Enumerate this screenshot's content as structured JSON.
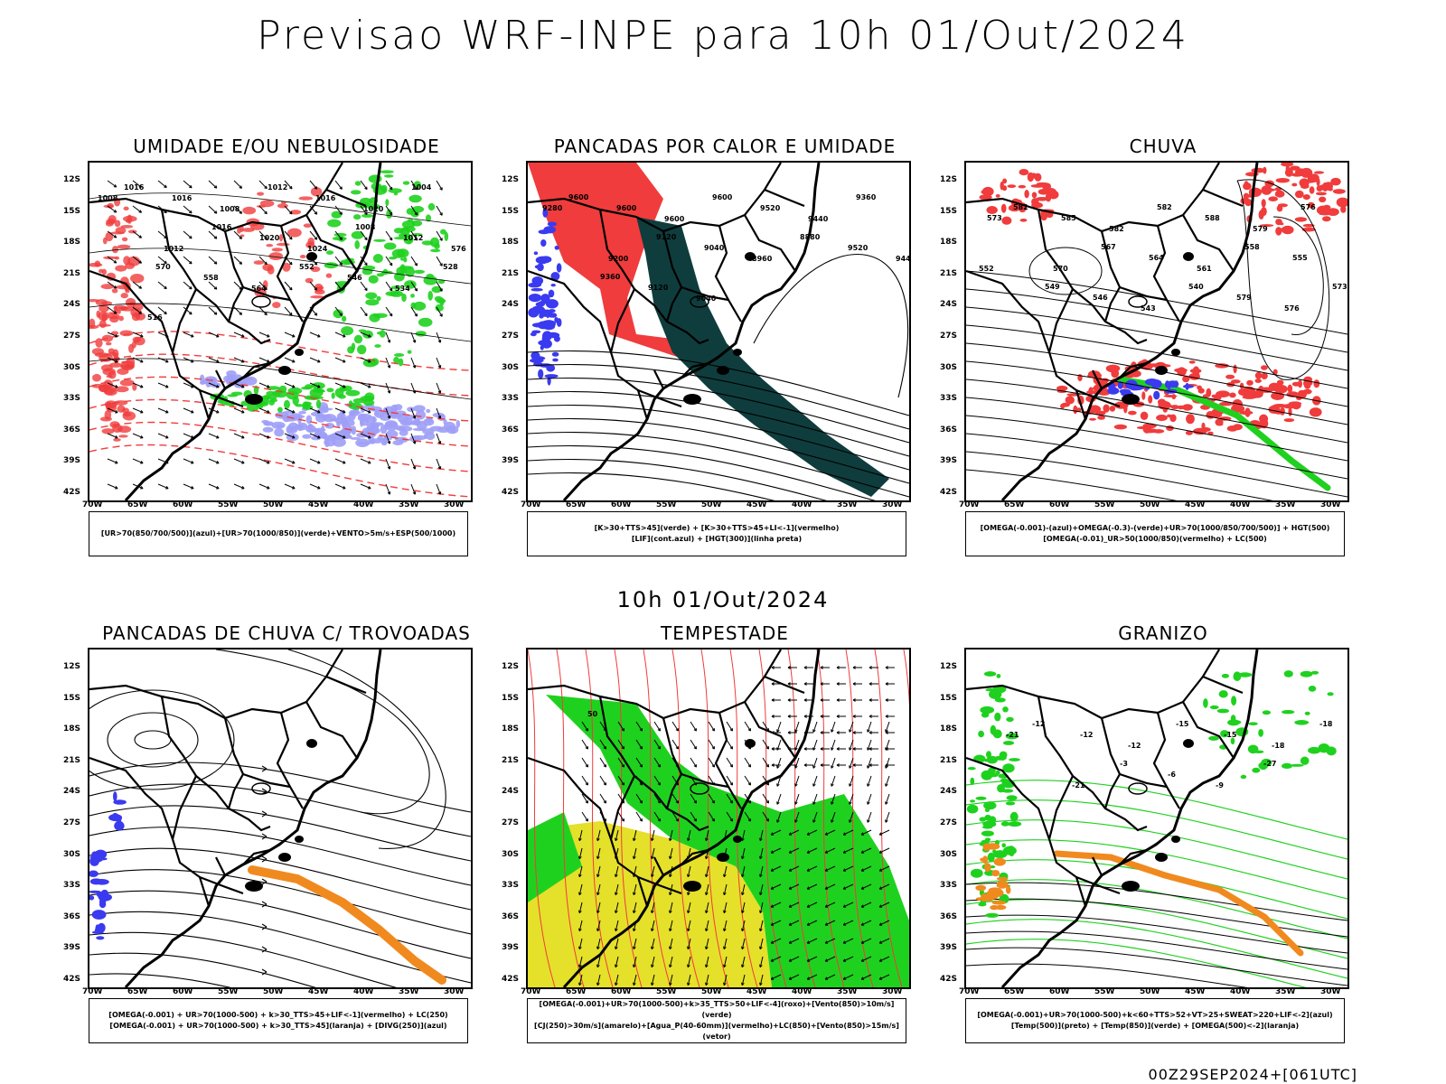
{
  "title": "Previsao WRF-INPE  para 10h 01/Out/2024",
  "subtitle": "10h 01/Out/2024",
  "footer": "00Z29SEP2024+[061UTC]",
  "axes": {
    "lat_ticks": [
      "12S",
      "15S",
      "18S",
      "21S",
      "24S",
      "27S",
      "30S",
      "33S",
      "36S",
      "39S",
      "42S"
    ],
    "lon_ticks": [
      "70W",
      "65W",
      "60W",
      "55W",
      "50W",
      "45W",
      "40W",
      "35W",
      "30W"
    ]
  },
  "colors": {
    "red": "#f03c3c",
    "green": "#1fd11f",
    "blue": "#3a3af0",
    "lightblue": "#9f9ff7",
    "darkgreen": "#0f3d3d",
    "yellow": "#e5e02a",
    "orange": "#f08a1e",
    "black": "#000000"
  },
  "panels": [
    {
      "id": "umidade",
      "title": "UMIDADE E/OU NEBULOSIDADE",
      "legend": [
        "[UR>70(850/700/500)](azul)+[UR>70(1000/850)](verde)+VENTO>5m/s+ESP(500/1000)"
      ],
      "contour_labels": [
        "1016",
        "1016",
        "1008",
        "1012",
        "1016",
        "1020",
        "1004",
        "1008",
        "1012",
        "1016",
        "1020",
        "1024",
        "1008",
        "1012",
        "576",
        "570",
        "558",
        "564",
        "552",
        "546",
        "534",
        "528",
        "516"
      ]
    },
    {
      "id": "pancadas-calor",
      "title": "PANCADAS POR CALOR E UMIDADE",
      "legend": [
        "[K>30+TTS>45](verde) + [K>30+TTS>45+LI<-1](vermelho)",
        "[LIF](cont.azul) + [HGT(300)](linha preta)"
      ],
      "contour_labels": [
        "9600",
        "9600",
        "9600",
        "9600",
        "9520",
        "9440",
        "9360",
        "9280",
        "9200",
        "9120",
        "9040",
        "8960",
        "8880",
        "9520",
        "9440",
        "9360",
        "9120",
        "9040"
      ]
    },
    {
      "id": "chuva",
      "title": "CHUVA",
      "legend": [
        "[OMEGA(-0.001)-(azul)+OMEGA(-0.3)-(verde)+UR>70(1000/850/700/500)] + HGT(500)",
        "[OMEGA(-0.01)_UR>50(1000/850)(vermelho) + LC(500)"
      ],
      "contour_labels": [
        "582",
        "585",
        "582",
        "582",
        "588",
        "579",
        "576",
        "573",
        "570",
        "567",
        "564",
        "561",
        "558",
        "555",
        "552",
        "549",
        "546",
        "543",
        "540",
        "579",
        "576",
        "573"
      ]
    },
    {
      "id": "trovoadas",
      "title": "PANCADAS DE CHUVA C/ TROVOADAS",
      "legend": [
        "[OMEGA(-0.001) + UR>70(1000-500) + k>30_TTS>45+LIF<-1](vermelho) + LC(250)",
        "[OMEGA(-0.001) + UR>70(1000-500) + k>30_TTS>45](laranja) + [DIVG(250)](azul)"
      ],
      "contour_labels": []
    },
    {
      "id": "tempestade",
      "title": "TEMPESTADE",
      "legend": [
        "[OMEGA(-0.001)+UR>70(1000-500)+k>35_TTS>50+LIF<-4](roxo)+[Vento(850)>10m/s](verde)",
        "[CJ(250)>30m/s](amarelo)+[Agua_P(40-60mm)](vermelho)+LC(850)+[Vento(850)>15m/s](vetor)"
      ],
      "contour_labels": [
        "50"
      ]
    },
    {
      "id": "granizo",
      "title": "GRANIZO",
      "legend": [
        "[OMEGA(-0.001)+UR>70(1000-500)+k<60+TTS>52+VT>25+SWEAT>220+LIF<-2](azul)",
        "[Temp(500)](preto) + [Temp(850)](verde) + [OMEGA(500)<-2](laranja)"
      ],
      "contour_labels": [
        "-12",
        "-12",
        "-12",
        "-15",
        "-15",
        "-18",
        "-18",
        "-21",
        "-21",
        "-3",
        "-6",
        "-9",
        "-27"
      ]
    }
  ]
}
